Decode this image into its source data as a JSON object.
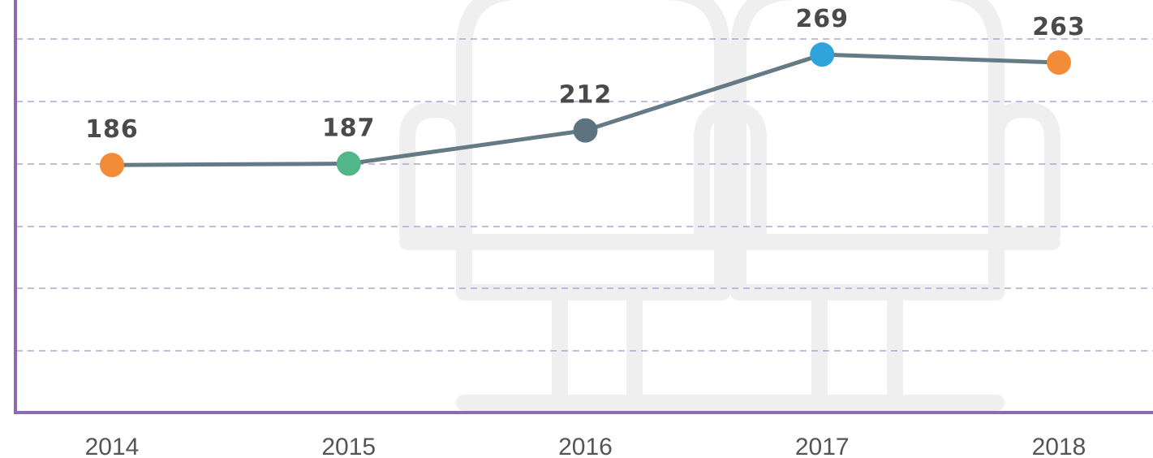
{
  "chart_data": {
    "type": "line",
    "categories": [
      "2014",
      "2015",
      "2016",
      "2017",
      "2018"
    ],
    "values": [
      186,
      187,
      212,
      269,
      263
    ],
    "color": "#647a85",
    "point_colors": [
      "#f28c38",
      "#52b788",
      "#5d7380",
      "#2ea3dc",
      "#f28c38"
    ],
    "ylim": [
      0,
      310
    ]
  }
}
